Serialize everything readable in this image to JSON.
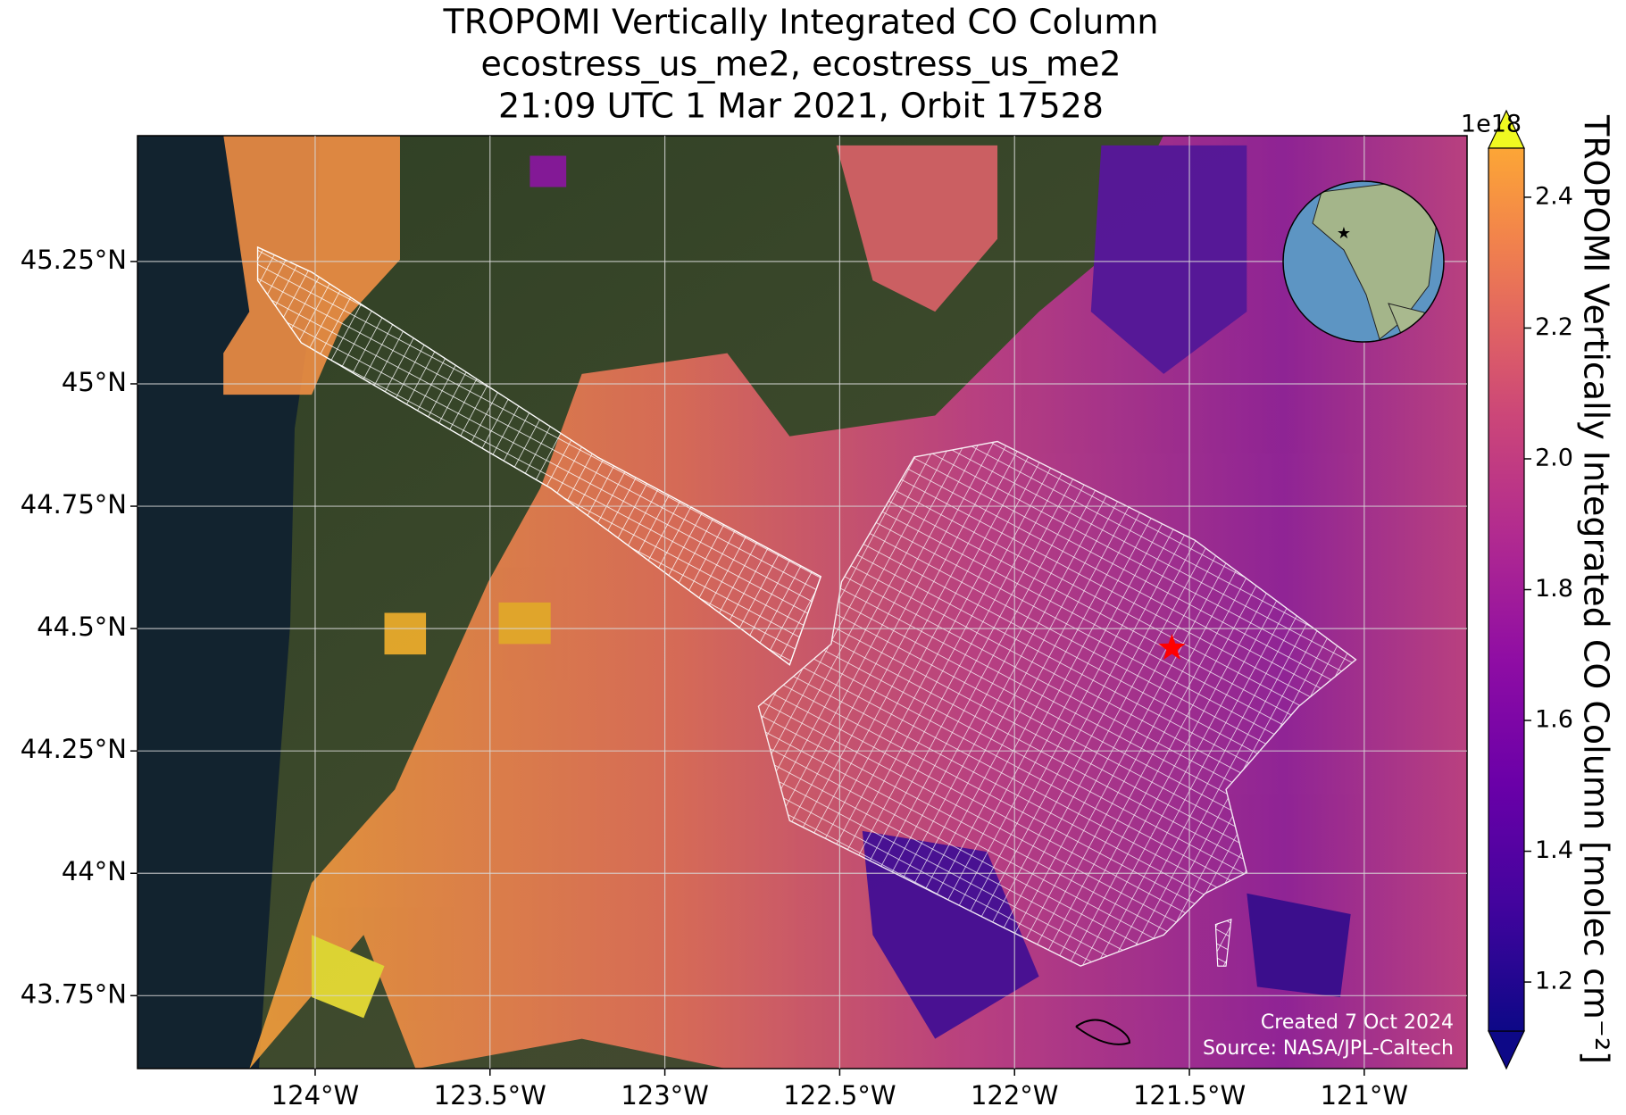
{
  "chart_data": {
    "type": "map",
    "title": [
      "TROPOMI Vertically Integrated CO Column",
      "ecostress_us_me2, ecostress_us_me2",
      "21:09 UTC 1 Mar 2021, Orbit 17528"
    ],
    "xlim": [
      -124.508,
      -120.706
    ],
    "ylim": [
      43.601,
      45.507
    ],
    "xticks": [
      {
        "value": -124,
        "label": "124°W"
      },
      {
        "value": -123.5,
        "label": "123.5°W"
      },
      {
        "value": -123,
        "label": "123°W"
      },
      {
        "value": -122.5,
        "label": "122.5°W"
      },
      {
        "value": -122,
        "label": "122°W"
      },
      {
        "value": -121.5,
        "label": "121.5°W"
      },
      {
        "value": -121,
        "label": "121°W"
      }
    ],
    "yticks": [
      {
        "value": 43.75,
        "label": "43.75°N"
      },
      {
        "value": 44,
        "label": "44°N"
      },
      {
        "value": 44.25,
        "label": "44.25°N"
      },
      {
        "value": 44.5,
        "label": "44.5°N"
      },
      {
        "value": 44.75,
        "label": "44.75°N"
      },
      {
        "value": 45,
        "label": "45°N"
      },
      {
        "value": 45.25,
        "label": "45.25°N"
      }
    ],
    "grid": true,
    "marker": {
      "lon": -121.55,
      "lat": 44.46,
      "color": "#ff0000"
    },
    "colorbar": {
      "label": "TROPOMI Vertically Integrated CO Column [molec cm⁻²]",
      "exponent": "1e18",
      "colormap": "plasma",
      "clim": [
        1.125,
        2.475
      ],
      "ticks": [
        {
          "value": 1.2,
          "label": "1.2"
        },
        1.4,
        1.6,
        1.8,
        {
          "value": 2,
          "label": "2.0"
        },
        2.2,
        2.4
      ]
    },
    "annotations": [
      "Created 7 Oct 2024",
      "Source: NASA/JPL-Caltech"
    ]
  }
}
